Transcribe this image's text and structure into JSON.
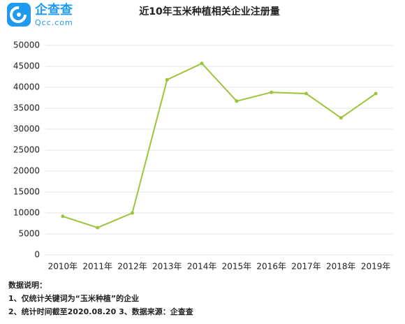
{
  "logo": {
    "name": "企查查",
    "url": "Qcc.com"
  },
  "chart_data": {
    "type": "line",
    "title": "近10年玉米种植相关企业注册量",
    "categories": [
      "2010年",
      "2011年",
      "2012年",
      "2013年",
      "2014年",
      "2015年",
      "2016年",
      "2017年",
      "2018年",
      "2019年"
    ],
    "values": [
      9200,
      6500,
      10000,
      41800,
      45700,
      36700,
      38800,
      38500,
      32700,
      38500
    ],
    "color": "#9dc43a",
    "ylim": [
      0,
      50000
    ],
    "yticks": [
      0,
      5000,
      10000,
      15000,
      20000,
      25000,
      30000,
      35000,
      40000,
      45000,
      50000
    ],
    "grid": true
  },
  "notes": [
    "数据说明：",
    "1、仅统计关键词为“玉米种植”的企业",
    "2、统计时间截至2020.08.20 3、数据来源：企查查"
  ]
}
